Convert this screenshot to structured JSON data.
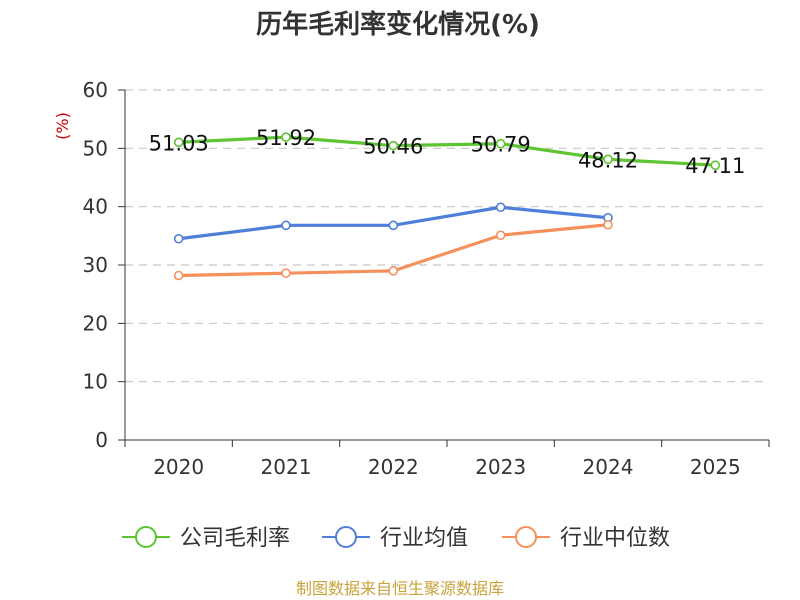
{
  "chart_data": {
    "type": "line",
    "title": "历年毛利率变化情况(%)",
    "ylabel": "(%)",
    "xlabel": "",
    "ylim": [
      0,
      60
    ],
    "yticks": [
      0,
      10,
      20,
      30,
      40,
      50,
      60
    ],
    "categories": [
      "2020",
      "2021",
      "2022",
      "2023",
      "2024",
      "2025"
    ],
    "grid": true,
    "legend_position": "bottom",
    "series": [
      {
        "name": "公司毛利率",
        "color": "#5cc531",
        "values": [
          51.03,
          51.92,
          50.46,
          50.79,
          48.12,
          47.11
        ],
        "labels": [
          "51.03",
          "51.92",
          "50.46",
          "50.79",
          "48.12",
          "47.11"
        ]
      },
      {
        "name": "行业均值",
        "color": "#4f7fd9",
        "values": [
          34.5,
          36.8,
          36.8,
          39.9,
          38.1,
          null
        ]
      },
      {
        "name": "行业中位数",
        "color": "#f58f5c",
        "values": [
          28.2,
          28.6,
          29.0,
          35.1,
          36.9,
          null
        ]
      }
    ]
  },
  "source_text": "制图数据来自恒生聚源数据库"
}
